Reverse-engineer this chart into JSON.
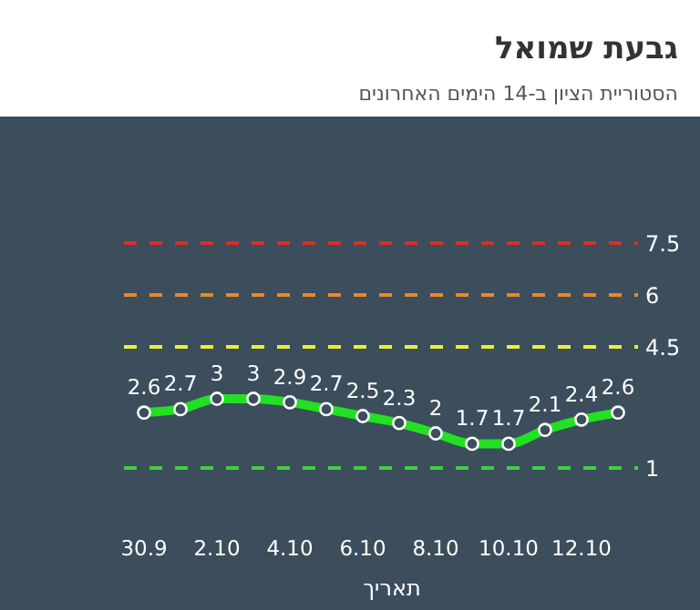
{
  "chart_data": {
    "type": "line",
    "title": "גבעת שמואל",
    "subtitle": "הסטוריית הציון ב-14 הימים האחרונים",
    "xlabel": "תאריך",
    "categories": [
      "30.9",
      null,
      "2.10",
      null,
      "4.10",
      null,
      "6.10",
      null,
      "8.10",
      null,
      "10.10",
      null,
      "12.10",
      null
    ],
    "series": [
      {
        "color": "#22e022",
        "values": [
          2.6,
          2.7,
          3,
          3,
          2.9,
          2.7,
          2.5,
          2.3,
          2,
          1.7,
          1.7,
          2.1,
          2.4,
          2.6
        ]
      }
    ],
    "tick_labels": "x",
    "grid": false,
    "marker": "circle",
    "line_style": "solid",
    "data_labels": true,
    "ref_lines": [
      {
        "axis": "y",
        "value": 7.5,
        "label": "7.5",
        "color": "#d6302a",
        "line_style": "dashed"
      },
      {
        "axis": "y",
        "value": 6,
        "label": "6",
        "color": "#e8892c",
        "line_style": "dashed"
      },
      {
        "axis": "y",
        "value": 4.5,
        "label": "4.5",
        "color": "#ecec3c",
        "line_style": "dashed"
      },
      {
        "axis": "y",
        "value": 1,
        "label": "1",
        "color": "#3fcf3f",
        "line_style": "dashed"
      }
    ]
  }
}
